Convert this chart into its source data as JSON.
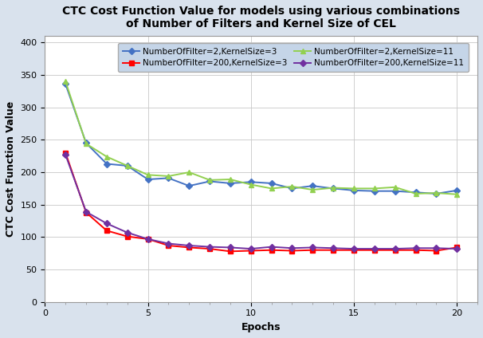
{
  "title": "CTC Cost Function Value for models using various combinations\nof Number of Filters and Kernel Size of CEL",
  "xlabel": "Epochs",
  "ylabel": "CTC Cost Function Value",
  "xlim": [
    0,
    21
  ],
  "ylim": [
    0,
    410
  ],
  "yticks": [
    0,
    50,
    100,
    150,
    200,
    250,
    300,
    350,
    400
  ],
  "xticks": [
    0,
    5,
    10,
    15,
    20
  ],
  "series": [
    {
      "label": "NumberOfFilter=2,KernelSize=3",
      "color": "#4472C4",
      "marker": "D",
      "markersize": 4,
      "linewidth": 1.4,
      "epochs": [
        1,
        2,
        3,
        4,
        5,
        6,
        7,
        8,
        9,
        10,
        11,
        12,
        13,
        14,
        15,
        16,
        17,
        18,
        19,
        20
      ],
      "values": [
        336,
        245,
        213,
        210,
        189,
        191,
        179,
        186,
        183,
        185,
        183,
        175,
        179,
        175,
        172,
        171,
        171,
        169,
        167,
        172
      ]
    },
    {
      "label": "NumberOfFilter=200,KernelSize=3",
      "color": "#FF0000",
      "marker": "s",
      "markersize": 4,
      "linewidth": 1.4,
      "epochs": [
        1,
        2,
        3,
        4,
        5,
        6,
        7,
        8,
        9,
        10,
        11,
        12,
        13,
        14,
        15,
        16,
        17,
        18,
        19,
        20
      ],
      "values": [
        230,
        138,
        110,
        101,
        97,
        87,
        84,
        82,
        78,
        79,
        80,
        79,
        80,
        80,
        80,
        80,
        80,
        80,
        79,
        84
      ]
    },
    {
      "label": "NumberOfFilter=2,KernelSize=11",
      "color": "#92D050",
      "marker": "^",
      "markersize": 5,
      "linewidth": 1.4,
      "epochs": [
        1,
        2,
        3,
        4,
        5,
        6,
        7,
        8,
        9,
        10,
        11,
        12,
        13,
        14,
        15,
        16,
        17,
        18,
        19,
        20
      ],
      "values": [
        340,
        244,
        224,
        210,
        196,
        194,
        200,
        188,
        189,
        181,
        175,
        178,
        173,
        176,
        175,
        175,
        177,
        167,
        168,
        166
      ]
    },
    {
      "label": "NumberOfFilter=200,KernelSize=11",
      "color": "#7030A0",
      "marker": "D",
      "markersize": 4,
      "linewidth": 1.4,
      "epochs": [
        1,
        2,
        3,
        4,
        5,
        6,
        7,
        8,
        9,
        10,
        11,
        12,
        13,
        14,
        15,
        16,
        17,
        18,
        19,
        20
      ],
      "values": [
        227,
        139,
        121,
        107,
        97,
        90,
        87,
        85,
        84,
        82,
        85,
        83,
        84,
        83,
        82,
        82,
        82,
        83,
        83,
        82
      ]
    }
  ],
  "title_fontsize": 10,
  "label_fontsize": 9,
  "tick_fontsize": 8,
  "legend_fontsize": 7.5,
  "outer_bg_color": "#D9E2ED",
  "plot_bg_color": "#FFFFFF",
  "legend_bg_color": "#C5D5E8",
  "grid_color": "#C8C8C8"
}
